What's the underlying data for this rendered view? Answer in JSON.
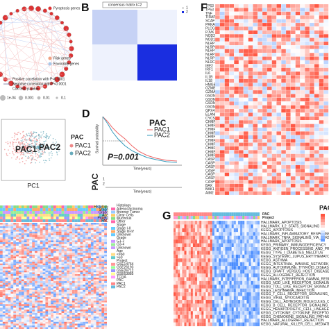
{
  "panel_a": {
    "legend": [
      "Pyroptosis genes",
      "Risk genes",
      "Favorable genes",
      "Positive correlation with P<0.0001",
      "Negative correlation with P<0.0001",
      "Cox test, p-value"
    ],
    "sizes": [
      "1e-04",
      "0.001",
      "0.01",
      "0.1"
    ]
  },
  "panel_b": {
    "label": "B",
    "title": "consensus matrix k=2",
    "legend": [
      "1",
      "2"
    ]
  },
  "panel_c": {
    "legend_title": "PAC",
    "legend": [
      "PAC1",
      "PAC2"
    ],
    "cluster_labels": [
      "PAC1",
      "PAC2"
    ],
    "x_label": "PC1"
  },
  "panel_d": {
    "label": "D",
    "y_label": "Survival probability",
    "legend_title": "PAC",
    "legend": [
      "PAC1",
      "PAC2"
    ],
    "p_value": "P=0.001",
    "x_label": "Time(years)",
    "risk_title": "PAC",
    "risk_rows": [
      "1",
      "2"
    ],
    "risk_x_label": "Time(years)"
  },
  "panel_f": {
    "label": "F",
    "genes": [
      "TP63",
      "TP53",
      "TNF",
      "TIRAP",
      "SCAF11",
      "PRKACA",
      "PLCG1",
      "PJVK",
      "NOD2",
      "NOD1",
      "NLRP7",
      "NLRP6",
      "NLRP3",
      "NLRP2",
      "NLRP1",
      "NLRC4",
      "IRF2",
      "IRF1",
      "IL6",
      "IL1B",
      "IL18",
      "HMGB1",
      "GZMB",
      "GZMA",
      "GSDME",
      "GSDMD",
      "GSDMC",
      "GSDMB",
      "GPX4",
      "ELANE",
      "CYCS",
      "CHMP7",
      "CHMP6",
      "CHMP4C",
      "CHMP4B",
      "CHMP4A",
      "CHMP3",
      "CHMP2B",
      "CHMP2A",
      "CHMP1B",
      "CHMP1A",
      "CASP9",
      "CASP8",
      "CASP6",
      "CASP5",
      "CASP4",
      "CASP3",
      "CASP1",
      "BAX",
      "BAK1",
      "AIM2"
    ]
  },
  "panel_e": {
    "tracks": [
      "Histology",
      "Stage",
      "Grade",
      "Age",
      "Project",
      "PAC"
    ],
    "legend": [
      {
        "title": "Histology",
        "items": [
          "Adenocarcinoma",
          "Brenner Tumor",
          "Clear Cells",
          "Mucinous",
          "Other"
        ]
      },
      {
        "title": "Stage",
        "items": [
          "Stage I-II",
          "Stage III-IV",
          "Unknown"
        ]
      },
      {
        "title": "Grade",
        "items": [
          "G1-2",
          "G3-4",
          "Unknown"
        ]
      },
      {
        "title": "Age",
        "items": [
          "<=60",
          ">60"
        ]
      },
      {
        "title": "Project",
        "items": [
          "GSE14764",
          "GSE26193",
          "GSE26712",
          "GSE63885",
          "TCGA"
        ]
      },
      {
        "title": "PAC",
        "items": [
          "PAC1",
          "PAC2"
        ]
      }
    ]
  },
  "panel_g": {
    "label": "G",
    "tracks": [
      "PAC",
      "Project"
    ],
    "pathways": [
      "HALLMARK_APOPTOSIS",
      "HALLMARK_IL2_STAT5_SIGNALING",
      "KEGG_APOPTOSIS",
      "HALLMARK_INFLAMMATORY_RESPONSE",
      "HALLMARK_TNFA_SIGNALING_VIA_NFKB",
      "HALLMARK_APOPTOSIS",
      "KEGG_PRIMARY_IMMUNODEFICIENCY",
      "KEGG_ANTIGEN_PROCESSING_AND_PRESENTATION",
      "KEGG_TYPE_I_DIABETES_MELLITUS",
      "KEGG_SYSTEMIC_LUPUS_ERYTHEMATOSUS",
      "KEGG_ASTHMA",
      "KEGG_INTESTINAL_IMMUNE_NETWORK_FOR_IGA_PRODUCTION",
      "KEGG_AUTOIMMUNE_THYROID_DISEASE",
      "KEGG_GRAFT_VERSUS_HOST_DISEASE",
      "KEGG_ALLOGRAFT_REJECTION",
      "HALLMARK_INTERFERON_GAMMA_RESPONSE",
      "KEGG_NOD_LIKE_RECEPTOR_SIGNALING_PATHWAY",
      "KEGG_TOLL_LIKE_RECEPTOR_SIGNALING_PATHWAY",
      "KEGG_LEISHMANIA_INFECTION",
      "KEGG_T_CELL_RECEPTOR_SIGNALING_PATHWAY",
      "KEGG_VIRAL_MYOCARDITIS",
      "KEGG_CELL_ADHESION_MOLECULES_CAMS",
      "KEGG_B_CELL_RECEPTOR_SIGNALING_PATHWAY",
      "KEGG_HEMATOPOIETIC_CELL_LINEAGE",
      "KEGG_CYTOKINE_CYTOKINE_RECEPTOR_INTERACTION",
      "KEGG_CHEMOKINE_SIGNALING_PATHWAY",
      "HALLMARK_ALLOGRAFT_REJECTION",
      "KEGG_NATURAL_KILLER_CELL_MEDIATED_CYTOTOXICITY"
    ],
    "legend_title": "PAC"
  }
}
